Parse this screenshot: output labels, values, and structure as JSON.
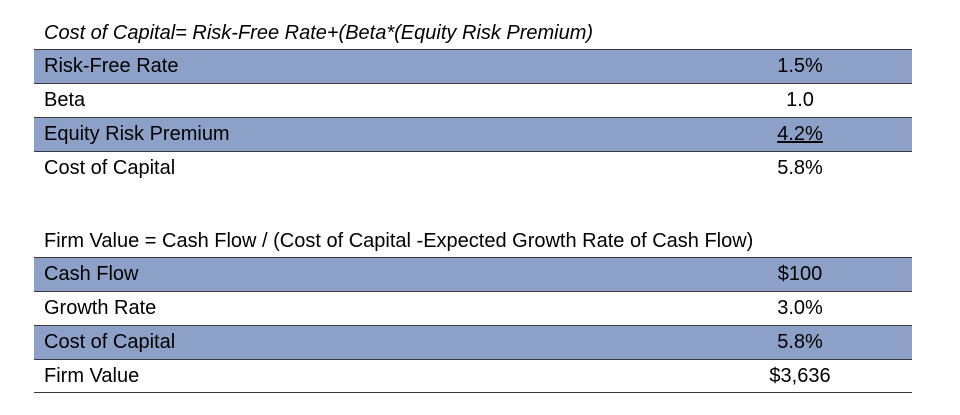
{
  "cost_of_capital_section": {
    "formula": "Cost of Capital= Risk-Free Rate+(Beta*(Equity Risk Premium)",
    "rows": [
      {
        "label": "Risk-Free Rate",
        "value": "1.5%"
      },
      {
        "label": "Beta",
        "value": "1.0"
      },
      {
        "label": "Equity Risk Premium",
        "value": "4.2%"
      },
      {
        "label": "Cost of Capital",
        "value": "5.8%"
      }
    ]
  },
  "firm_value_section": {
    "formula": "Firm Value = Cash Flow / (Cost of Capital -Expected Growth Rate of Cash Flow)",
    "rows": [
      {
        "label": "Cash Flow",
        "value": "$100"
      },
      {
        "label": "Growth Rate",
        "value": "3.0%"
      },
      {
        "label": "Cost of Capital",
        "value": "5.8%"
      },
      {
        "label": "Firm Value",
        "value": "$3,636"
      }
    ]
  },
  "colors": {
    "shaded_row": "#8da1c8",
    "border": "#3a3a3a",
    "text": "#000000"
  }
}
